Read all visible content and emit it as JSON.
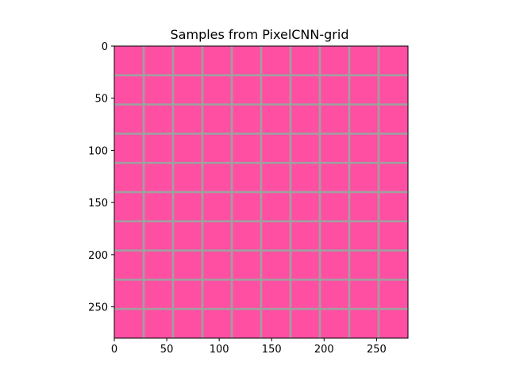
{
  "chart_data": {
    "type": "heatmap",
    "title": "Samples from PixelCNN-grid",
    "xlabel": "",
    "ylabel": "",
    "xlim": [
      0,
      280
    ],
    "ylim": [
      280,
      0
    ],
    "x_ticks": [
      0,
      50,
      100,
      150,
      200,
      250
    ],
    "y_ticks": [
      0,
      50,
      100,
      150,
      200,
      250
    ],
    "grid": false,
    "image": {
      "rows": 10,
      "cols": 10,
      "tile_size": 28,
      "separator_width": 2,
      "tile_color": "#ff4fa3",
      "separator_color": "#a0a0a0"
    }
  }
}
